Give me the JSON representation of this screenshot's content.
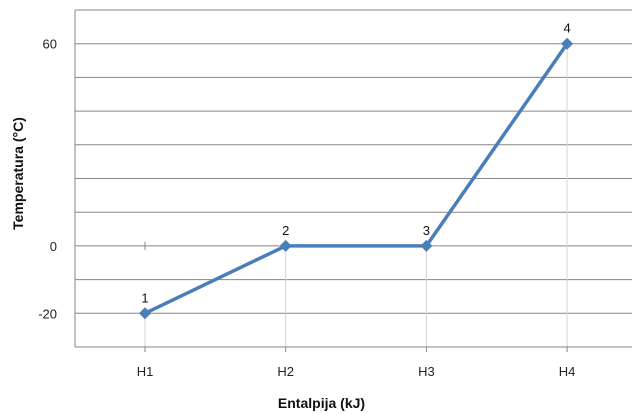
{
  "chart_data": {
    "type": "line",
    "title": "",
    "xlabel": "Entalpija (kJ)",
    "ylabel": "Temperatura (°C)",
    "categories": [
      "H1",
      "H2",
      "H3",
      "H4"
    ],
    "yticks": [
      "60",
      "0",
      "-20"
    ],
    "ylim": [
      -30,
      70
    ],
    "grid": true,
    "series": [
      {
        "values": [
          -20,
          0,
          0,
          60
        ],
        "point_labels": [
          "1",
          "2",
          "3",
          "4"
        ],
        "color": "#4a7ebb"
      }
    ]
  }
}
